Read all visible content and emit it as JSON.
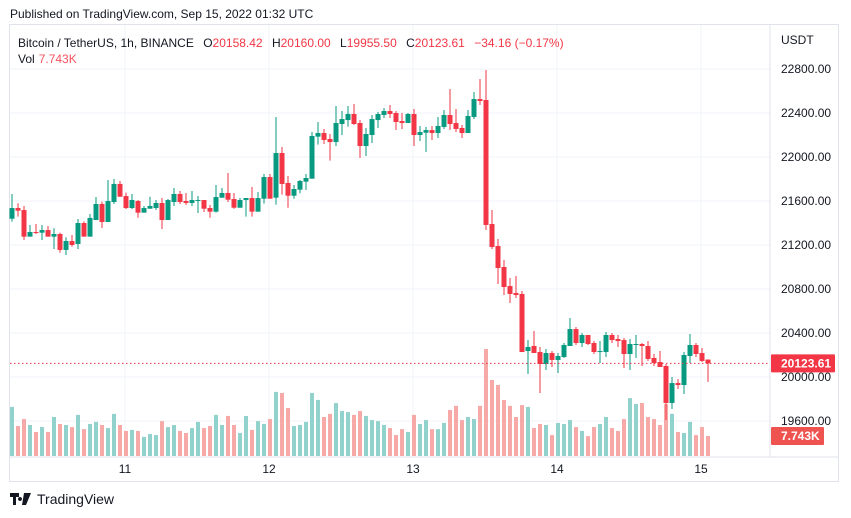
{
  "published": "Published on TradingView.com, Sep 15, 2022 01:32 UTC",
  "legend": {
    "symbol": "Bitcoin / TetherUS, 1h, BINANCE",
    "o_label": "O",
    "o": "20158.42",
    "h_label": "H",
    "h": "20160.00",
    "l_label": "L",
    "l": "19955.50",
    "c_label": "C",
    "c": "20123.61",
    "change": "−34.16 (−0.17%)",
    "vol_label": "Vol",
    "vol": "7.743K"
  },
  "logo_text": "TradingView",
  "colors": {
    "up": "#089981",
    "down": "#f23645",
    "vol_up": "#92d2cc",
    "vol_down": "#f7a9a7",
    "grid": "#f0f3fa"
  },
  "chart_data": {
    "type": "candlestick",
    "title": "Bitcoin / TetherUS, 1h, BINANCE",
    "currency": "USDT",
    "ylim": [
      19500,
      22850
    ],
    "y_ticks": [
      "22800.00",
      "22400.00",
      "22000.00",
      "21600.00",
      "21200.00",
      "20800.00",
      "20400.00",
      "20000.00",
      "19600.00"
    ],
    "x_ticks": [
      {
        "label": "11",
        "index": 19
      },
      {
        "label": "12",
        "index": 43
      },
      {
        "label": "13",
        "index": 67
      },
      {
        "label": "14",
        "index": 91
      },
      {
        "label": "15",
        "index": 115
      }
    ],
    "last_price_label": "20123.61",
    "last_volume_label": "7.743K",
    "volume_unit": "K",
    "candles_ohlcv": [
      [
        21439,
        21664,
        21412,
        21536,
        19.0
      ],
      [
        21536,
        21579,
        21458,
        21512,
        11.6
      ],
      [
        21518,
        21555,
        21245,
        21276,
        14.3
      ],
      [
        21276,
        21382,
        21276,
        21318,
        12.0
      ],
      [
        21318,
        21391,
        21300,
        21312,
        9.3
      ],
      [
        21312,
        21382,
        21245,
        21336,
        11.2
      ],
      [
        21336,
        21373,
        21276,
        21276,
        9.3
      ],
      [
        21276,
        21352,
        21164,
        21300,
        15.1
      ],
      [
        21300,
        21312,
        21130,
        21155,
        12.4
      ],
      [
        21155,
        21270,
        21109,
        21236,
        12.0
      ],
      [
        21236,
        21291,
        21185,
        21200,
        11.2
      ],
      [
        21209,
        21436,
        21164,
        21400,
        15.9
      ],
      [
        21400,
        21415,
        21276,
        21276,
        10.4
      ],
      [
        21276,
        21482,
        21276,
        21446,
        12.4
      ],
      [
        21427,
        21636,
        21427,
        21573,
        13.2
      ],
      [
        21573,
        21594,
        21355,
        21409,
        12.0
      ],
      [
        21409,
        21791,
        21409,
        21600,
        10.8
      ],
      [
        21591,
        21800,
        21573,
        21755,
        16.3
      ],
      [
        21755,
        21782,
        21639,
        21639,
        12.0
      ],
      [
        21645,
        21676,
        21527,
        21536,
        9.7
      ],
      [
        21536,
        21664,
        21527,
        21609,
        10.1
      ],
      [
        21600,
        21609,
        21448,
        21494,
        9.7
      ],
      [
        21494,
        21555,
        21494,
        21536,
        7.4
      ],
      [
        21530,
        21639,
        21530,
        21555,
        8.5
      ],
      [
        21536,
        21609,
        21518,
        21582,
        8.1
      ],
      [
        21582,
        21627,
        21345,
        21427,
        13.5
      ],
      [
        21427,
        21618,
        21427,
        21609,
        11.2
      ],
      [
        21591,
        21718,
        21555,
        21664,
        12.0
      ],
      [
        21664,
        21691,
        21573,
        21591,
        9.7
      ],
      [
        21600,
        21673,
        21564,
        21582,
        8.9
      ],
      [
        21582,
        21691,
        21555,
        21609,
        10.8
      ],
      [
        21606,
        21645,
        21491,
        21609,
        13.2
      ],
      [
        21609,
        21609,
        21500,
        21530,
        10.8
      ],
      [
        21536,
        21564,
        21448,
        21503,
        11.6
      ],
      [
        21503,
        21745,
        21494,
        21636,
        15.9
      ],
      [
        21630,
        21718,
        21630,
        21673,
        12.0
      ],
      [
        21673,
        21855,
        21591,
        21612,
        15.5
      ],
      [
        21618,
        21673,
        21530,
        21539,
        12.0
      ],
      [
        21539,
        21627,
        21539,
        21609,
        8.9
      ],
      [
        21609,
        21627,
        21458,
        21627,
        15.5
      ],
      [
        21627,
        21727,
        21458,
        21503,
        10.1
      ],
      [
        21503,
        21682,
        21503,
        21627,
        13.5
      ],
      [
        21621,
        21845,
        21576,
        21818,
        12.4
      ],
      [
        21818,
        21845,
        21621,
        21621,
        14.3
      ],
      [
        21630,
        22364,
        21567,
        22036,
        24.8
      ],
      [
        22036,
        22091,
        21658,
        21755,
        24.4
      ],
      [
        21764,
        21827,
        21539,
        21648,
        18.6
      ],
      [
        21648,
        21745,
        21621,
        21709,
        11.6
      ],
      [
        21703,
        21791,
        21670,
        21782,
        12.0
      ],
      [
        21776,
        21845,
        21700,
        21809,
        13.2
      ],
      [
        21803,
        22227,
        21803,
        22191,
        24.4
      ],
      [
        22185,
        22318,
        22112,
        22218,
        21.7
      ],
      [
        22218,
        22255,
        22118,
        22155,
        15.1
      ],
      [
        22164,
        22209,
        21967,
        22136,
        16.3
      ],
      [
        22136,
        22464,
        22100,
        22309,
        20.5
      ],
      [
        22300,
        22418,
        22200,
        22345,
        17.4
      ],
      [
        22336,
        22464,
        22276,
        22391,
        17.0
      ],
      [
        22391,
        22482,
        22291,
        22300,
        15.9
      ],
      [
        22309,
        22336,
        21991,
        22100,
        17.4
      ],
      [
        22100,
        22264,
        22009,
        22209,
        15.5
      ],
      [
        22200,
        22382,
        22127,
        22345,
        13.9
      ],
      [
        22336,
        22409,
        22264,
        22391,
        13.5
      ],
      [
        22382,
        22445,
        22355,
        22418,
        12.0
      ],
      [
        22418,
        22473,
        22355,
        22391,
        10.8
      ],
      [
        22400,
        22418,
        22245,
        22318,
        8.1
      ],
      [
        22327,
        22400,
        22255,
        22309,
        10.4
      ],
      [
        22309,
        22400,
        22309,
        22391,
        9.3
      ],
      [
        22391,
        22436,
        22100,
        22200,
        15.9
      ],
      [
        22200,
        22282,
        22146,
        22227,
        12.4
      ],
      [
        22221,
        22273,
        22045,
        22245,
        13.9
      ],
      [
        22245,
        22282,
        22155,
        22218,
        10.4
      ],
      [
        22218,
        22364,
        22173,
        22282,
        10.4
      ],
      [
        22273,
        22427,
        22255,
        22382,
        12.8
      ],
      [
        22382,
        22618,
        22245,
        22300,
        17.8
      ],
      [
        22309,
        22436,
        22227,
        22255,
        19.4
      ],
      [
        22264,
        22291,
        22173,
        22218,
        13.9
      ],
      [
        22218,
        22427,
        22218,
        22373,
        15.1
      ],
      [
        22364,
        22591,
        22345,
        22527,
        14.3
      ],
      [
        22527,
        22709,
        22473,
        22509,
        19.4
      ],
      [
        22518,
        22791,
        21336,
        21382,
        41.4
      ],
      [
        21391,
        21518,
        21164,
        21182,
        29.4
      ],
      [
        21191,
        21255,
        20845,
        20991,
        27.5
      ],
      [
        21000,
        21064,
        20745,
        20818,
        21.7
      ],
      [
        20827,
        20900,
        20673,
        20755,
        19.4
      ],
      [
        20764,
        20918,
        20718,
        20745,
        15.1
      ],
      [
        20755,
        20782,
        20227,
        20227,
        19.7
      ],
      [
        20236,
        20336,
        20027,
        20273,
        19.0
      ],
      [
        20282,
        20418,
        20218,
        20218,
        10.8
      ],
      [
        20227,
        20273,
        19855,
        20118,
        12.4
      ],
      [
        20118,
        20255,
        20064,
        20218,
        12.0
      ],
      [
        20218,
        20236,
        20091,
        20155,
        8.1
      ],
      [
        20155,
        20218,
        20036,
        20191,
        12.8
      ],
      [
        20182,
        20309,
        20173,
        20291,
        12.4
      ],
      [
        20282,
        20536,
        20282,
        20436,
        13.9
      ],
      [
        20436,
        20455,
        20291,
        20309,
        11.2
      ],
      [
        20309,
        20400,
        20273,
        20382,
        9.7
      ],
      [
        20382,
        20382,
        20291,
        20300,
        7.7
      ],
      [
        20309,
        20327,
        20209,
        20227,
        11.2
      ],
      [
        20227,
        20327,
        20127,
        20236,
        12.4
      ],
      [
        20227,
        20409,
        20182,
        20382,
        15.1
      ],
      [
        20382,
        20400,
        20309,
        20336,
        10.8
      ],
      [
        20345,
        20382,
        20273,
        20327,
        9.7
      ],
      [
        20336,
        20355,
        20082,
        20209,
        14.3
      ],
      [
        20209,
        20345,
        20064,
        20300,
        22.4
      ],
      [
        20291,
        20382,
        20173,
        20300,
        20.1
      ],
      [
        20300,
        20309,
        20100,
        20282,
        20.5
      ],
      [
        20282,
        20327,
        20146,
        20164,
        15.1
      ],
      [
        20173,
        20209,
        20100,
        20127,
        14.3
      ],
      [
        20136,
        20236,
        20091,
        20091,
        12.0
      ],
      [
        20100,
        20118,
        19609,
        19764,
        20.1
      ],
      [
        19764,
        20000,
        19709,
        19945,
        16.3
      ],
      [
        19945,
        19982,
        19891,
        19927,
        9.3
      ],
      [
        19927,
        20227,
        19845,
        20200,
        8.9
      ],
      [
        20191,
        20391,
        20127,
        20291,
        13.2
      ],
      [
        20291,
        20309,
        20182,
        20209,
        8.1
      ],
      [
        20218,
        20264,
        20136,
        20146,
        11.2
      ],
      [
        20158.42,
        20160.0,
        19955.5,
        20123.61,
        7.743
      ]
    ]
  }
}
